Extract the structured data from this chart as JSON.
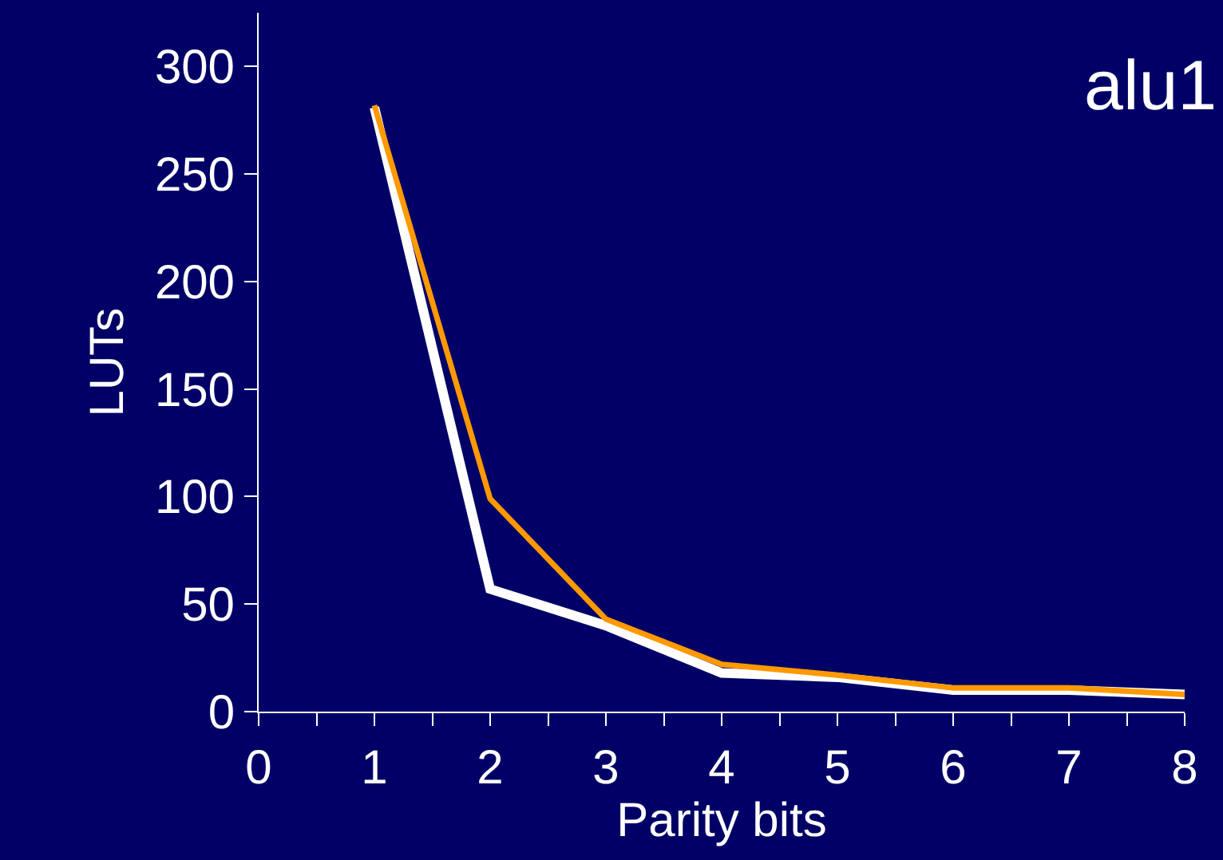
{
  "chart_data": {
    "type": "line",
    "title": "alu1",
    "xlabel": "Parity bits",
    "ylabel": "LUTs",
    "x": [
      1,
      2,
      3,
      4,
      5,
      6,
      7,
      8
    ],
    "series": [
      {
        "color": "#ffffff",
        "values": [
          281,
          57,
          40,
          18,
          16,
          10,
          10,
          8
        ]
      },
      {
        "color": "#ff9900",
        "values": [
          282,
          99,
          43,
          22,
          17,
          11,
          11,
          8
        ]
      }
    ],
    "xlim": [
      0,
      8
    ],
    "xticks": [
      0,
      {
        "value": 0.5,
        "label": null
      },
      1,
      {
        "value": 1.5,
        "label": null
      },
      2,
      {
        "value": 2.5,
        "label": null
      },
      3,
      {
        "value": 3.5,
        "label": null
      },
      4,
      {
        "value": 4.5,
        "label": null
      },
      5,
      {
        "value": 5.5,
        "label": null
      },
      6,
      {
        "value": 6.5,
        "label": null
      },
      7,
      {
        "value": 7.5,
        "label": null
      },
      8
    ],
    "ylim": [
      0,
      325
    ],
    "yticks": [
      0,
      50,
      100,
      150,
      200,
      250,
      300
    ],
    "grid": false,
    "legend": false,
    "marker": "none",
    "line_style": "solid"
  }
}
